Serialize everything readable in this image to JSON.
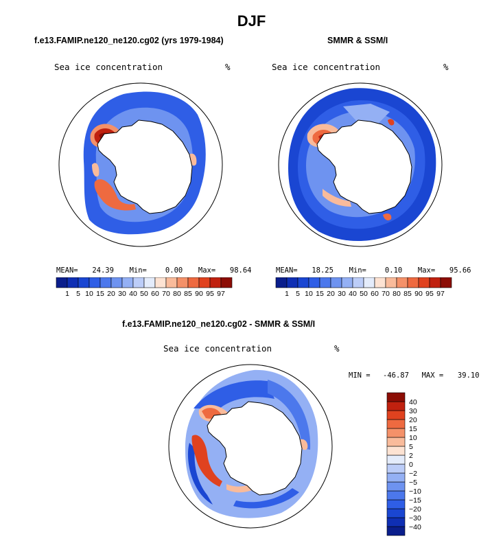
{
  "title": "DJF",
  "panels": [
    {
      "title": "f.e13.FAMIP.ne120_ne120.cg02 (yrs 1979-1984)",
      "variable": "Sea ice concentration",
      "units": "%",
      "stats": {
        "mean_label": "MEAN=",
        "mean": "24.39",
        "min_label": "Min=",
        "min": "0.00",
        "max_label": "Max=",
        "max": "98.64"
      }
    },
    {
      "title": "SMMR & SSM/I",
      "variable": "Sea ice concentration",
      "units": "%",
      "stats": {
        "mean_label": "MEAN=",
        "mean": "18.25",
        "min_label": "Min=",
        "min": "0.10",
        "max_label": "Max=",
        "max": "95.66"
      }
    },
    {
      "title": "f.e13.FAMIP.ne120_ne120.cg02 - SMMR & SSM/I",
      "variable": "Sea ice concentration",
      "units": "%",
      "stats": {
        "min_label": "MIN =",
        "min": "-46.87",
        "max_label": "MAX =",
        "max": "39.10"
      }
    }
  ],
  "chart_data": [
    {
      "type": "heatmap",
      "projection": "south-polar-stereographic",
      "title": "f.e13.FAMIP.ne120_ne120.cg02 (yrs 1979-1984)",
      "variable": "Sea ice concentration",
      "units": "%",
      "mean": 24.39,
      "min": 0.0,
      "max": 98.64,
      "colorbar": {
        "orientation": "horizontal",
        "levels": [
          1,
          5,
          10,
          15,
          20,
          30,
          40,
          50,
          60,
          70,
          80,
          85,
          90,
          95,
          97
        ],
        "colors": [
          "#0a1e8c",
          "#0f2fb4",
          "#1a46d2",
          "#2f5ee6",
          "#4c78ec",
          "#6e93f0",
          "#94b0f4",
          "#bccdf8",
          "#e4ecfb",
          "#fde3d3",
          "#f9bb9b",
          "#f49169",
          "#ee6a40",
          "#e0421f",
          "#c0210f",
          "#8c0d05"
        ]
      }
    },
    {
      "type": "heatmap",
      "projection": "south-polar-stereographic",
      "title": "SMMR & SSM/I",
      "variable": "Sea ice concentration",
      "units": "%",
      "mean": 18.25,
      "min": 0.1,
      "max": 95.66,
      "colorbar": {
        "orientation": "horizontal",
        "levels": [
          1,
          5,
          10,
          15,
          20,
          30,
          40,
          50,
          60,
          70,
          80,
          85,
          90,
          95,
          97
        ],
        "colors": [
          "#0a1e8c",
          "#0f2fb4",
          "#1a46d2",
          "#2f5ee6",
          "#4c78ec",
          "#6e93f0",
          "#94b0f4",
          "#bccdf8",
          "#e4ecfb",
          "#fde3d3",
          "#f9bb9b",
          "#f49169",
          "#ee6a40",
          "#e0421f",
          "#c0210f",
          "#8c0d05"
        ]
      }
    },
    {
      "type": "heatmap",
      "projection": "south-polar-stereographic",
      "title": "f.e13.FAMIP.ne120_ne120.cg02 - SMMR & SSM/I",
      "variable": "Sea ice concentration",
      "units": "%",
      "min": -46.87,
      "max": 39.1,
      "colorbar": {
        "orientation": "vertical",
        "levels": [
          -40,
          -30,
          -20,
          -15,
          -10,
          -5,
          -2,
          0,
          2,
          5,
          10,
          15,
          20,
          30,
          40
        ],
        "colors": [
          "#0a1e8c",
          "#0f2fb4",
          "#1a46d2",
          "#2f5ee6",
          "#4c78ec",
          "#6e93f0",
          "#94b0f4",
          "#bccdf8",
          "#e4ecfb",
          "#fde3d3",
          "#f9bb9b",
          "#f49169",
          "#ee6a40",
          "#e0421f",
          "#c0210f",
          "#8c0d05"
        ]
      }
    }
  ]
}
